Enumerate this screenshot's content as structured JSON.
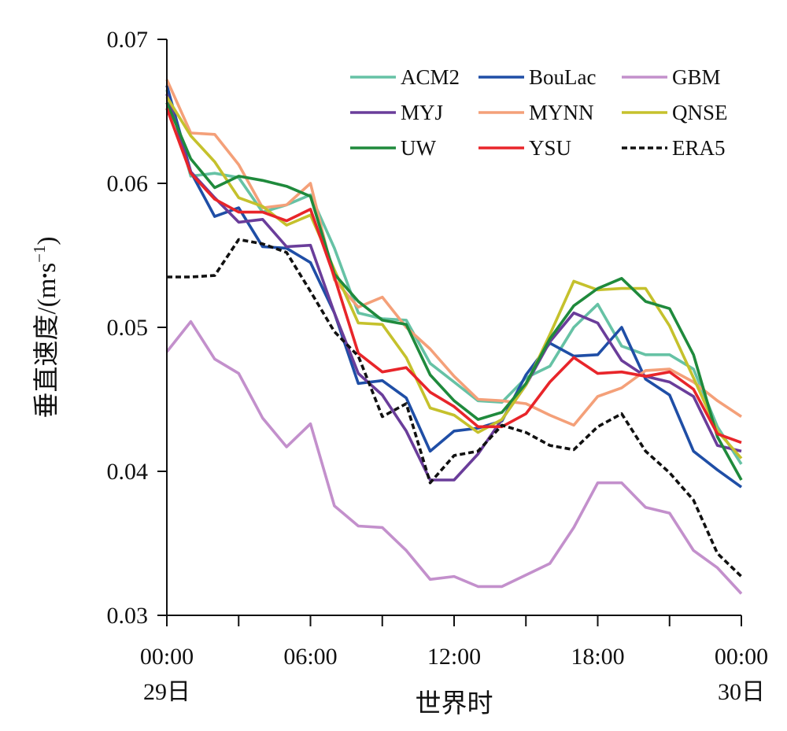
{
  "chart_data": {
    "type": "line",
    "title": "",
    "xlabel": "世界时",
    "ylabel": "垂直速度/(m·s⁻¹)",
    "ylabel_parts": {
      "main": "垂直速度/(m",
      "dot": "•",
      "s": "s",
      "exp": "−1",
      "close": ")"
    },
    "ylim": [
      0.03,
      0.07
    ],
    "yticks": [
      0.03,
      0.04,
      0.05,
      0.06,
      0.07
    ],
    "ytick_labels": [
      "0.03",
      "0.04",
      "0.05",
      "0.06",
      "0.07"
    ],
    "xlim": [
      0,
      24
    ],
    "xticks": [
      0,
      6,
      12,
      18,
      24
    ],
    "xtick_labels": [
      "00:00",
      "06:00",
      "12:00",
      "18:00",
      "00:00"
    ],
    "xtick_sublabels": [
      "29日",
      "",
      "",
      "",
      "30日"
    ],
    "x_minor_ticks": [
      3,
      9,
      15,
      21
    ],
    "x": [
      0,
      1,
      2,
      3,
      4,
      5,
      6,
      7,
      8,
      9,
      10,
      11,
      12,
      13,
      14,
      15,
      16,
      17,
      18,
      19,
      20,
      21,
      22,
      23,
      24
    ],
    "grid": false,
    "legend_position": "top-right",
    "legend_columns": 3,
    "series": [
      {
        "name": "ACM2",
        "color": "#66c2a5",
        "dash": "solid",
        "values": [
          0.0665,
          0.0605,
          0.0607,
          0.0604,
          0.058,
          0.0585,
          0.0592,
          0.0555,
          0.051,
          0.0506,
          0.0505,
          0.0475,
          0.0462,
          0.0449,
          0.0448,
          0.0465,
          0.0473,
          0.05,
          0.0516,
          0.0487,
          0.0481,
          0.0481,
          0.0471,
          0.0431,
          0.0405
        ]
      },
      {
        "name": "BouLac",
        "color": "#1f4ea6",
        "dash": "solid",
        "values": [
          0.0668,
          0.0608,
          0.0577,
          0.0583,
          0.0556,
          0.0555,
          0.0545,
          0.051,
          0.0461,
          0.0463,
          0.0451,
          0.0414,
          0.0428,
          0.043,
          0.0435,
          0.0467,
          0.0489,
          0.048,
          0.0481,
          0.05,
          0.0464,
          0.0453,
          0.0414,
          0.0401,
          0.0389
        ]
      },
      {
        "name": "GBM",
        "color": "#c390cc",
        "dash": "solid",
        "values": [
          0.0483,
          0.0504,
          0.0478,
          0.0468,
          0.0437,
          0.0417,
          0.0433,
          0.0376,
          0.0362,
          0.0361,
          0.0345,
          0.0325,
          0.0327,
          0.032,
          0.032,
          0.0328,
          0.0336,
          0.0361,
          0.0392,
          0.0392,
          0.0375,
          0.0371,
          0.0345,
          0.0333,
          0.0315
        ]
      },
      {
        "name": "MYJ",
        "color": "#6a3d9a",
        "dash": "solid",
        "values": [
          0.0662,
          0.0608,
          0.059,
          0.0573,
          0.0575,
          0.0556,
          0.0557,
          0.051,
          0.0468,
          0.0453,
          0.0428,
          0.0394,
          0.0394,
          0.0412,
          0.0436,
          0.046,
          0.049,
          0.051,
          0.0503,
          0.0477,
          0.0466,
          0.0462,
          0.0452,
          0.0418,
          0.0414
        ]
      },
      {
        "name": "MYNN",
        "color": "#f4a079",
        "dash": "solid",
        "values": [
          0.0672,
          0.0635,
          0.0634,
          0.0613,
          0.0583,
          0.0585,
          0.06,
          0.0533,
          0.0514,
          0.0521,
          0.05,
          0.0485,
          0.0466,
          0.045,
          0.0449,
          0.0447,
          0.0439,
          0.0432,
          0.0452,
          0.0458,
          0.047,
          0.0471,
          0.0462,
          0.0449,
          0.0438
        ]
      },
      {
        "name": "QNSE",
        "color": "#c5c12c",
        "dash": "solid",
        "values": [
          0.066,
          0.0633,
          0.0615,
          0.059,
          0.0584,
          0.0571,
          0.0578,
          0.054,
          0.0503,
          0.0502,
          0.0479,
          0.0444,
          0.0439,
          0.0427,
          0.0436,
          0.046,
          0.0495,
          0.0532,
          0.0526,
          0.0527,
          0.0527,
          0.0501,
          0.0465,
          0.0428,
          0.0409
        ]
      },
      {
        "name": "UW",
        "color": "#1f8a3c",
        "dash": "solid",
        "values": [
          0.0656,
          0.0617,
          0.0597,
          0.0605,
          0.0602,
          0.0598,
          0.0591,
          0.0537,
          0.0518,
          0.0505,
          0.0502,
          0.0467,
          0.0449,
          0.0436,
          0.0441,
          0.0461,
          0.0492,
          0.0515,
          0.0527,
          0.0534,
          0.0518,
          0.0513,
          0.0481,
          0.0424,
          0.0394
        ]
      },
      {
        "name": "YSU",
        "color": "#e8252a",
        "dash": "solid",
        "values": [
          0.0652,
          0.0607,
          0.0589,
          0.058,
          0.058,
          0.0574,
          0.0582,
          0.0535,
          0.0482,
          0.0469,
          0.0472,
          0.0455,
          0.0445,
          0.0431,
          0.0431,
          0.044,
          0.0462,
          0.0479,
          0.0468,
          0.0469,
          0.0466,
          0.0469,
          0.0457,
          0.0426,
          0.042
        ]
      },
      {
        "name": "ERA5",
        "color": "#111111",
        "dash": "dotted",
        "values": [
          0.0535,
          0.0535,
          0.0536,
          0.0561,
          0.0558,
          0.0552,
          0.0525,
          0.0497,
          0.048,
          0.0438,
          0.0447,
          0.0392,
          0.0411,
          0.0414,
          0.0432,
          0.0427,
          0.0418,
          0.0415,
          0.0431,
          0.044,
          0.0414,
          0.0399,
          0.038,
          0.0343,
          0.0327
        ]
      }
    ]
  }
}
